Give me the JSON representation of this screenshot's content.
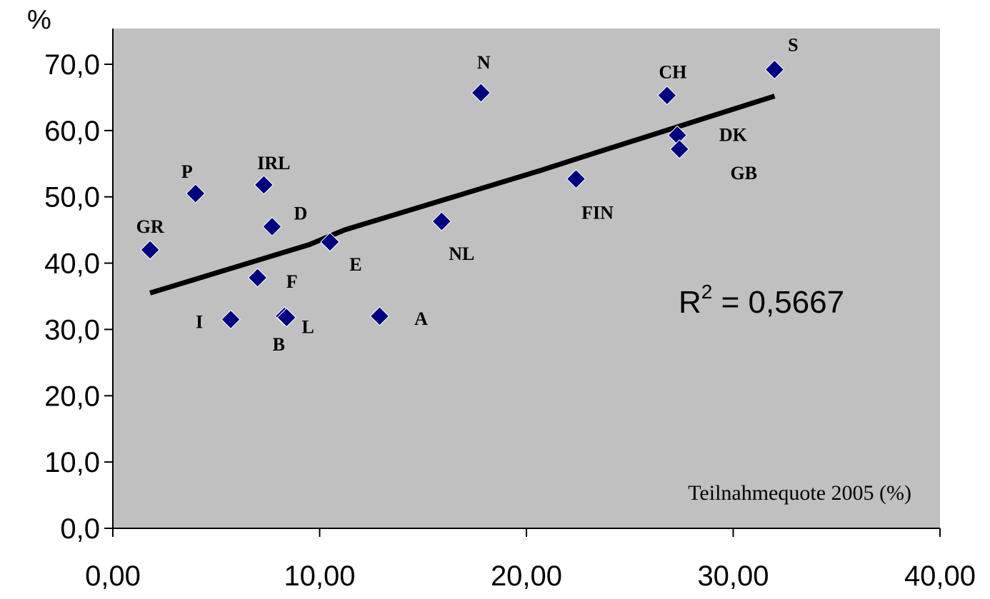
{
  "chart_data": {
    "type": "scatter",
    "y_unit_label": "%",
    "annotation": "Teilnahmequote 2005 (%)",
    "r2": {
      "prefix": "R",
      "sup": "2",
      "suffix": " = 0,5667"
    },
    "xlim": [
      0,
      40
    ],
    "ylim": [
      0,
      70
    ],
    "x_ticks": [
      0,
      10,
      20,
      30,
      40
    ],
    "x_tick_labels": [
      "0,00",
      "10,00",
      "20,00",
      "30,00",
      "40,00"
    ],
    "y_ticks": [
      0,
      10,
      20,
      30,
      40,
      50,
      60,
      70
    ],
    "y_tick_labels": [
      "0,0",
      "10,0",
      "20,0",
      "30,0",
      "40,0",
      "50,0",
      "60,0",
      "70,0"
    ],
    "grid": false,
    "plot_bg": "#c0c0c0",
    "marker_color": "#000080",
    "trend_color": "#000000",
    "points": [
      {
        "label": "GR",
        "x": 1.8,
        "y": 42.0
      },
      {
        "label": "P",
        "x": 4.0,
        "y": 50.5
      },
      {
        "label": "IRL",
        "x": 7.3,
        "y": 51.8
      },
      {
        "label": "D",
        "x": 7.7,
        "y": 45.5
      },
      {
        "label": "F",
        "x": 7.0,
        "y": 37.8
      },
      {
        "label": "I",
        "x": 5.7,
        "y": 31.5
      },
      {
        "label": "B",
        "x": 8.3,
        "y": 32.0
      },
      {
        "label": "L",
        "x": 8.4,
        "y": 31.8
      },
      {
        "label": "E",
        "x": 10.5,
        "y": 43.2
      },
      {
        "label": "A",
        "x": 12.9,
        "y": 32.0
      },
      {
        "label": "NL",
        "x": 15.9,
        "y": 46.3
      },
      {
        "label": "N",
        "x": 17.8,
        "y": 65.7
      },
      {
        "label": "FIN",
        "x": 22.4,
        "y": 52.7
      },
      {
        "label": "CH",
        "x": 26.8,
        "y": 65.3
      },
      {
        "label": "DK",
        "x": 27.3,
        "y": 59.3
      },
      {
        "label": "GB",
        "x": 27.4,
        "y": 57.2
      },
      {
        "label": "S",
        "x": 32.0,
        "y": 69.2
      }
    ],
    "trendline": [
      {
        "x": 1.8,
        "y": 35.5
      },
      {
        "x": 9.5,
        "y": 42.8
      },
      {
        "x": 11.2,
        "y": 45.0
      },
      {
        "x": 20.7,
        "y": 54.0
      },
      {
        "x": 22.9,
        "y": 56.2
      },
      {
        "x": 32.0,
        "y": 65.2
      }
    ]
  }
}
